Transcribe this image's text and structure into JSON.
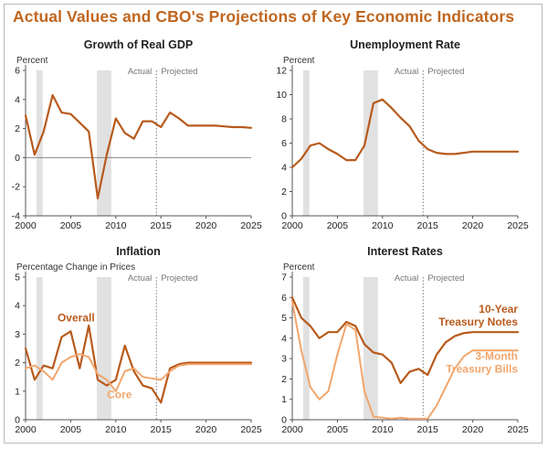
{
  "title": "Actual Values and CBO's Projections of Key Economic Indicators",
  "colors": {
    "dark_orange": "#b85a1c",
    "light_orange": "#f1a66d",
    "recession": "#e1e1e1",
    "axis": "#555555",
    "zero_line": "#888888"
  },
  "chart_data": [
    {
      "type": "line",
      "title": "Growth of Real GDP",
      "ylabel": "Percent",
      "xlabel": "",
      "xlim": [
        2000,
        2025
      ],
      "ylim": [
        -4,
        6
      ],
      "x_ticks": [
        2000,
        2005,
        2010,
        2015,
        2020,
        2025
      ],
      "y_ticks": [
        -4,
        -2,
        0,
        2,
        4,
        6
      ],
      "zero_line": true,
      "recessions": [
        [
          2001.2,
          2001.9
        ],
        [
          2007.9,
          2009.5
        ]
      ],
      "projection_start": 2014.5,
      "region_labels": {
        "actual": "Actual",
        "projected": "Projected"
      },
      "series": [
        {
          "color_key": "dark_orange",
          "width": 2.2,
          "show_label": false,
          "x": [
            2000,
            2001,
            2002,
            2003,
            2004,
            2005,
            2006,
            2007,
            2008,
            2009,
            2010,
            2011,
            2012,
            2013,
            2014,
            2015,
            2016,
            2017,
            2018,
            2019,
            2020,
            2021,
            2022,
            2023,
            2024,
            2025
          ],
          "y": [
            2.9,
            0.2,
            1.8,
            4.3,
            3.1,
            3.0,
            2.4,
            1.8,
            -2.8,
            0.2,
            2.7,
            1.7,
            1.3,
            2.5,
            2.5,
            2.1,
            3.1,
            2.7,
            2.2,
            2.2,
            2.2,
            2.2,
            2.15,
            2.1,
            2.1,
            2.05
          ]
        }
      ]
    },
    {
      "type": "line",
      "title": "Unemployment Rate",
      "ylabel": "Percent",
      "xlabel": "",
      "xlim": [
        2000,
        2025
      ],
      "ylim": [
        0,
        12
      ],
      "x_ticks": [
        2000,
        2005,
        2010,
        2015,
        2020,
        2025
      ],
      "y_ticks": [
        0,
        2,
        4,
        6,
        8,
        10,
        12
      ],
      "zero_line": false,
      "recessions": [
        [
          2001.2,
          2001.9
        ],
        [
          2007.9,
          2009.5
        ]
      ],
      "projection_start": 2014.5,
      "region_labels": {
        "actual": "Actual",
        "projected": "Projected"
      },
      "series": [
        {
          "color_key": "dark_orange",
          "width": 2.2,
          "show_label": false,
          "x": [
            2000,
            2001,
            2002,
            2003,
            2004,
            2005,
            2006,
            2007,
            2008,
            2009,
            2010,
            2011,
            2012,
            2013,
            2014,
            2015,
            2016,
            2017,
            2018,
            2019,
            2020,
            2021,
            2022,
            2023,
            2024,
            2025
          ],
          "y": [
            4.0,
            4.7,
            5.8,
            6.0,
            5.5,
            5.1,
            4.6,
            4.6,
            5.8,
            9.3,
            9.6,
            8.9,
            8.1,
            7.4,
            6.2,
            5.5,
            5.2,
            5.1,
            5.1,
            5.2,
            5.3,
            5.3,
            5.3,
            5.3,
            5.3,
            5.3
          ]
        }
      ]
    },
    {
      "type": "line",
      "title": "Inflation",
      "ylabel": "Percentage Change in Prices",
      "xlabel": "",
      "xlim": [
        2000,
        2025
      ],
      "ylim": [
        0,
        5
      ],
      "x_ticks": [
        2000,
        2005,
        2010,
        2015,
        2020,
        2025
      ],
      "y_ticks": [
        0,
        1,
        2,
        3,
        4,
        5
      ],
      "zero_line": false,
      "recessions": [
        [
          2001.2,
          2001.9
        ],
        [
          2007.9,
          2009.5
        ]
      ],
      "projection_start": 2014.5,
      "region_labels": {
        "actual": "Actual",
        "projected": "Projected"
      },
      "series": [
        {
          "name": "Overall",
          "color_key": "dark_orange",
          "width": 2.2,
          "show_label": true,
          "label_at": [
            2005.6,
            3.45
          ],
          "label_anchor": "middle",
          "x": [
            2000,
            2001,
            2002,
            2003,
            2004,
            2005,
            2006,
            2007,
            2008,
            2009,
            2010,
            2011,
            2012,
            2013,
            2014,
            2015,
            2016,
            2017,
            2018,
            2019,
            2020,
            2021,
            2022,
            2023,
            2024,
            2025
          ],
          "y": [
            2.5,
            1.4,
            1.9,
            1.8,
            2.9,
            3.1,
            1.8,
            3.3,
            1.4,
            1.2,
            1.4,
            2.6,
            1.7,
            1.2,
            1.1,
            0.6,
            1.8,
            1.95,
            2.0,
            2.0,
            2.0,
            2.0,
            2.0,
            2.0,
            2.0,
            2.0
          ]
        },
        {
          "name": "Core",
          "color_key": "light_orange",
          "width": 2.0,
          "show_label": true,
          "label_at": [
            2010.4,
            0.75
          ],
          "label_anchor": "middle",
          "x": [
            2000,
            2001,
            2002,
            2003,
            2004,
            2005,
            2006,
            2007,
            2008,
            2009,
            2010,
            2011,
            2012,
            2013,
            2014,
            2015,
            2016,
            2017,
            2018,
            2019,
            2020,
            2021,
            2022,
            2023,
            2024,
            2025
          ],
          "y": [
            1.8,
            1.9,
            1.7,
            1.4,
            2.0,
            2.2,
            2.3,
            2.2,
            1.6,
            1.4,
            1.0,
            1.7,
            1.8,
            1.5,
            1.45,
            1.4,
            1.7,
            1.9,
            1.95,
            1.95,
            1.95,
            1.95,
            1.95,
            1.95,
            1.95,
            1.95
          ]
        }
      ]
    },
    {
      "type": "line",
      "title": "Interest Rates",
      "ylabel": "Percent",
      "xlabel": "",
      "xlim": [
        2000,
        2025
      ],
      "ylim": [
        0,
        7
      ],
      "x_ticks": [
        2000,
        2005,
        2010,
        2015,
        2020,
        2025
      ],
      "y_ticks": [
        0,
        1,
        2,
        3,
        4,
        5,
        6,
        7
      ],
      "zero_line": false,
      "recessions": [
        [
          2001.2,
          2001.9
        ],
        [
          2007.9,
          2009.5
        ]
      ],
      "projection_start": 2014.5,
      "region_labels": {
        "actual": "Actual",
        "projected": "Projected"
      },
      "series": [
        {
          "name": "10-Year",
          "name_line2": "Treasury Notes",
          "color_key": "dark_orange",
          "width": 2.2,
          "show_label": true,
          "label_at": [
            2025,
            5.25
          ],
          "label_anchor": "end",
          "x": [
            2000,
            2001,
            2002,
            2003,
            2004,
            2005,
            2006,
            2007,
            2008,
            2009,
            2010,
            2011,
            2012,
            2013,
            2014,
            2015,
            2016,
            2017,
            2018,
            2019,
            2020,
            2021,
            2022,
            2023,
            2024,
            2025
          ],
          "y": [
            6.0,
            5.0,
            4.6,
            4.0,
            4.3,
            4.3,
            4.8,
            4.6,
            3.7,
            3.3,
            3.2,
            2.8,
            1.8,
            2.35,
            2.5,
            2.2,
            3.2,
            3.8,
            4.1,
            4.25,
            4.3,
            4.3,
            4.3,
            4.3,
            4.3,
            4.3
          ]
        },
        {
          "name": "3-Month",
          "name_line2": "Treasury Bills",
          "color_key": "light_orange",
          "width": 2.0,
          "show_label": true,
          "label_at": [
            2025,
            2.95
          ],
          "label_anchor": "end",
          "x": [
            2000,
            2001,
            2002,
            2003,
            2004,
            2005,
            2006,
            2007,
            2008,
            2009,
            2010,
            2011,
            2012,
            2013,
            2014,
            2015,
            2016,
            2017,
            2018,
            2019,
            2020,
            2021,
            2022,
            2023,
            2024,
            2025
          ],
          "y": [
            5.8,
            3.4,
            1.6,
            1.0,
            1.4,
            3.2,
            4.7,
            4.4,
            1.4,
            0.15,
            0.1,
            0.05,
            0.1,
            0.05,
            0.05,
            0.05,
            0.7,
            1.6,
            2.5,
            3.1,
            3.4,
            3.4,
            3.4,
            3.4,
            3.4,
            3.4
          ]
        }
      ]
    }
  ]
}
